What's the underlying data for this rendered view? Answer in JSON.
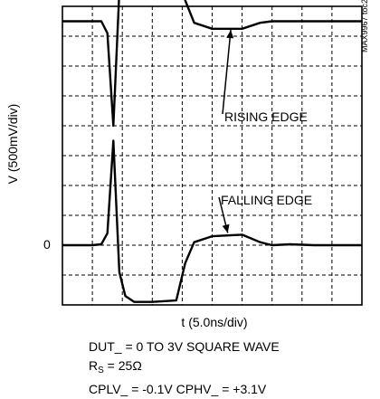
{
  "chart_data": {
    "type": "line",
    "ylabel": "V (500mV/div)",
    "xlabel": "t (5.0ns/div)",
    "zero_label": "0",
    "watermark": "MAX9967 toc20",
    "grid": true,
    "divisions": {
      "x": 10,
      "y": 10
    },
    "annotations": [
      {
        "text": "RISING EDGE",
        "points_to_series": "rising_edge",
        "point_x": 27.5,
        "point_div": 7.3
      },
      {
        "text": "FALLING EDGE",
        "points_to_series": "falling_edge",
        "point_x": 27,
        "point_div": 0.5
      }
    ],
    "series": [
      {
        "key": "rising_edge",
        "x_ns": [
          0,
          5,
          6.5,
          7.5,
          8.5,
          9.5,
          10.5,
          12,
          15,
          19,
          20.5,
          22,
          25,
          30,
          33,
          35,
          50
        ],
        "v_div": [
          7.5,
          7.5,
          7.5,
          7.1,
          4,
          8.5,
          9.3,
          9.45,
          9.45,
          9.35,
          8.2,
          7.45,
          7.25,
          7.25,
          7.45,
          7.5,
          7.5
        ]
      },
      {
        "key": "falling_edge",
        "x_ns": [
          0,
          5,
          6.5,
          7.5,
          8.5,
          9.5,
          10.5,
          12,
          15,
          19,
          20.5,
          22,
          25,
          30,
          33,
          35,
          38,
          42,
          45,
          50
        ],
        "v_div": [
          0,
          0,
          0.03,
          0.4,
          3.5,
          -0.9,
          -1.7,
          -1.9,
          -1.9,
          -1.85,
          -0.6,
          0.1,
          0.3,
          0.35,
          0.1,
          0,
          0.03,
          0,
          0,
          0
        ]
      }
    ]
  },
  "notes": {
    "line1": "DUT_ = 0 TO 3V SQUARE WAVE",
    "rs_prefix": "R",
    "rs_sub": "S",
    "rs_suffix": " = 25Ω",
    "line3": "CPLV_ = -0.1V CPHV_ = +3.1V"
  }
}
